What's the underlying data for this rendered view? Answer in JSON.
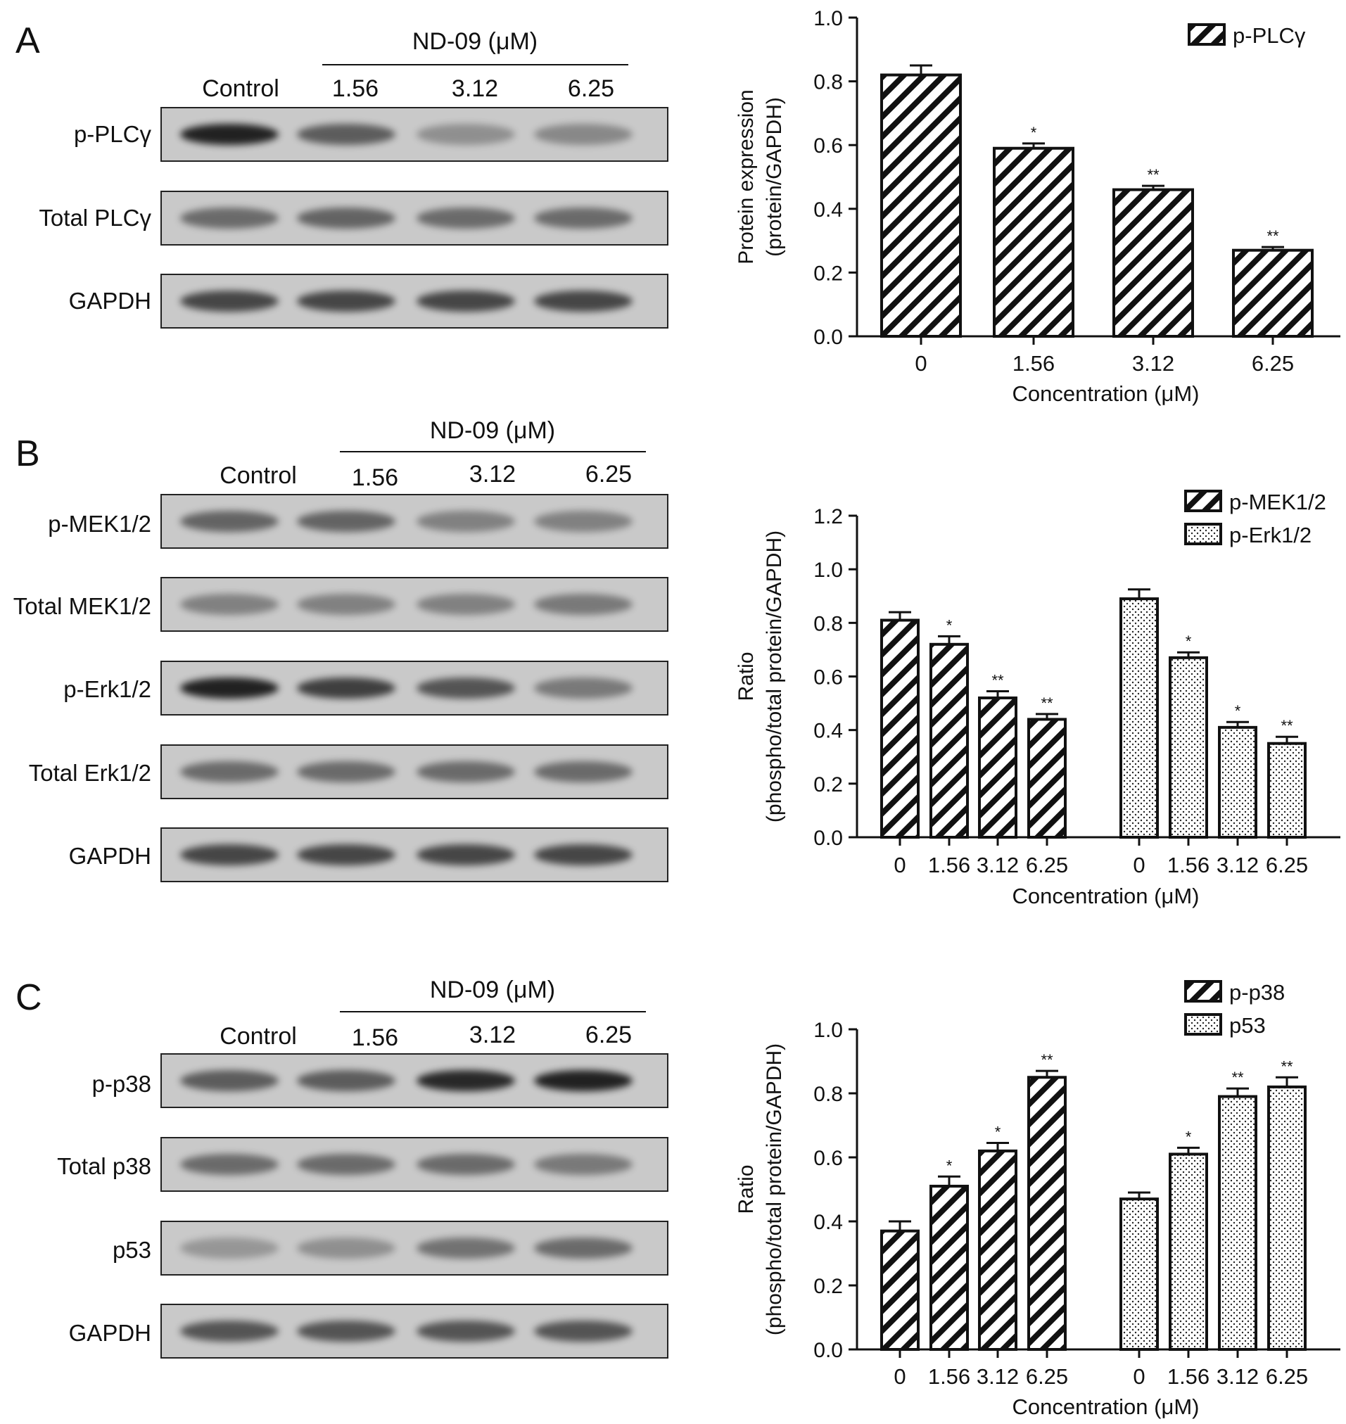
{
  "colors": {
    "bar_stroke": "#111111",
    "blot_background": "#c9c9c9",
    "band": "#111111"
  },
  "panels": [
    {
      "letter": "A",
      "treatment_label": "ND-09 (μM)",
      "lanes": [
        "Control",
        "1.56",
        "3.12",
        "6.25"
      ],
      "blots": [
        {
          "label": "p-PLCγ",
          "band_intensity": [
            0.95,
            0.55,
            0.2,
            0.25
          ]
        },
        {
          "label": "Total PLCγ",
          "band_intensity": [
            0.45,
            0.5,
            0.45,
            0.45
          ]
        },
        {
          "label": "GAPDH",
          "band_intensity": [
            0.7,
            0.7,
            0.7,
            0.7
          ]
        }
      ]
    },
    {
      "letter": "B",
      "treatment_label": "ND-09 (μM)",
      "lanes": [
        "Control",
        "1.56",
        "3.12",
        "6.25"
      ],
      "blots": [
        {
          "label": "p-MEK1/2",
          "band_intensity": [
            0.5,
            0.5,
            0.3,
            0.3
          ]
        },
        {
          "label": "Total MEK1/2",
          "band_intensity": [
            0.3,
            0.3,
            0.3,
            0.35
          ]
        },
        {
          "label": "p-Erk1/2",
          "band_intensity": [
            0.95,
            0.75,
            0.6,
            0.35
          ]
        },
        {
          "label": "Total Erk1/2",
          "band_intensity": [
            0.45,
            0.45,
            0.45,
            0.45
          ]
        },
        {
          "label": "GAPDH",
          "band_intensity": [
            0.7,
            0.7,
            0.7,
            0.7
          ]
        }
      ]
    },
    {
      "letter": "C",
      "treatment_label": "ND-09 (μM)",
      "lanes": [
        "Control",
        "1.56",
        "3.12",
        "6.25"
      ],
      "blots": [
        {
          "label": "p-p38",
          "band_intensity": [
            0.55,
            0.55,
            0.9,
            0.95
          ]
        },
        {
          "label": "Total p38",
          "band_intensity": [
            0.45,
            0.45,
            0.45,
            0.35
          ]
        },
        {
          "label": "p53",
          "band_intensity": [
            0.15,
            0.2,
            0.4,
            0.45
          ]
        },
        {
          "label": "GAPDH",
          "band_intensity": [
            0.6,
            0.6,
            0.6,
            0.6
          ]
        }
      ]
    }
  ],
  "chart_data": [
    {
      "type": "bar",
      "panel": "A",
      "categories": [
        "0",
        "1.56",
        "3.12",
        "6.25"
      ],
      "series": [
        {
          "name": "p-PLCγ",
          "pattern": "hatch",
          "values": [
            0.82,
            0.59,
            0.46,
            0.27
          ],
          "errors": [
            0.03,
            0.015,
            0.012,
            0.01
          ],
          "significance": [
            "",
            "*",
            "**",
            "**"
          ]
        }
      ],
      "title": "",
      "xlabel": "Concentration (μM)",
      "ylabel": [
        "Protein expression",
        "(protein/GAPDH)"
      ],
      "ylim": [
        0,
        1.0
      ],
      "yticks": [
        "0.0",
        "0.2",
        "0.4",
        "0.6",
        "0.8",
        "1.0"
      ],
      "legend": "top-right",
      "grid": false
    },
    {
      "type": "bar",
      "panel": "B",
      "categories": [
        "0",
        "1.56",
        "3.12",
        "6.25"
      ],
      "series": [
        {
          "name": "p-MEK1/2",
          "pattern": "hatch",
          "values": [
            0.81,
            0.72,
            0.52,
            0.44
          ],
          "errors": [
            0.03,
            0.03,
            0.025,
            0.02
          ],
          "significance": [
            "",
            "*",
            "**",
            "**"
          ]
        },
        {
          "name": "p-Erk1/2",
          "pattern": "dots",
          "values": [
            0.89,
            0.67,
            0.41,
            0.35
          ],
          "errors": [
            0.035,
            0.02,
            0.02,
            0.025
          ],
          "significance": [
            "",
            "*",
            "*",
            "**"
          ]
        }
      ],
      "title": "",
      "xlabel": "Concentration (μM)",
      "ylabel": [
        "Ratio",
        "(phospho/total protein/GAPDH)"
      ],
      "ylim": [
        0,
        1.2
      ],
      "yticks": [
        "0.0",
        "0.2",
        "0.4",
        "0.6",
        "0.8",
        "1.0",
        "1.2"
      ],
      "legend": "top-right",
      "grid": false
    },
    {
      "type": "bar",
      "panel": "C",
      "categories": [
        "0",
        "1.56",
        "3.12",
        "6.25"
      ],
      "series": [
        {
          "name": "p-p38",
          "pattern": "hatch",
          "values": [
            0.37,
            0.51,
            0.62,
            0.85
          ],
          "errors": [
            0.03,
            0.03,
            0.025,
            0.02
          ],
          "significance": [
            "",
            "*",
            "*",
            "**"
          ]
        },
        {
          "name": "p53",
          "pattern": "dots",
          "values": [
            0.47,
            0.61,
            0.79,
            0.82
          ],
          "errors": [
            0.02,
            0.02,
            0.025,
            0.03
          ],
          "significance": [
            "",
            "*",
            "**",
            "**"
          ]
        }
      ],
      "title": "",
      "xlabel": "Concentration (μM)",
      "ylabel": [
        "Ratio",
        "(phospho/total protein/GAPDH)"
      ],
      "ylim": [
        0,
        1.0
      ],
      "yticks": [
        "0.0",
        "0.2",
        "0.4",
        "0.6",
        "0.8",
        "1.0"
      ],
      "legend": "top-right",
      "grid": false
    }
  ]
}
